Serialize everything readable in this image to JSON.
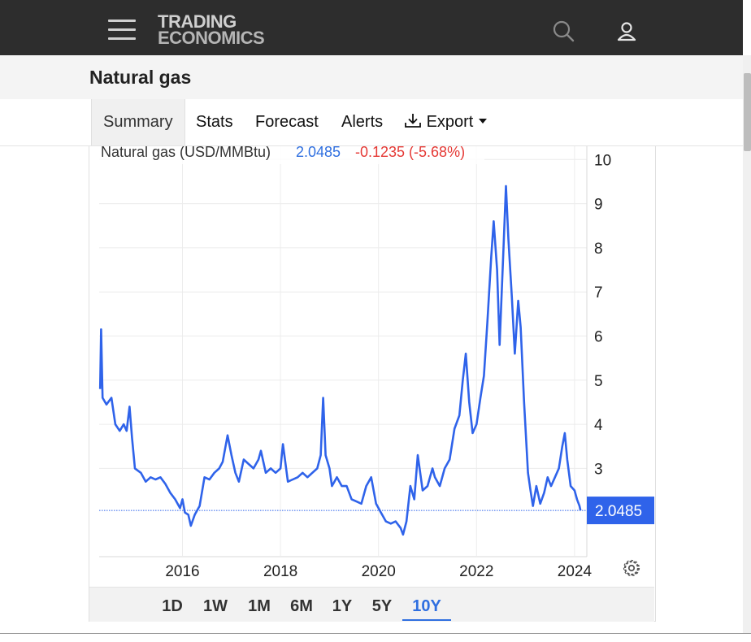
{
  "header": {
    "logo_line1": "TRADING",
    "logo_line2": "ECONOMICS"
  },
  "page": {
    "title": "Natural gas"
  },
  "tabs": [
    {
      "label": "Summary",
      "active": true
    },
    {
      "label": "Stats"
    },
    {
      "label": "Forecast"
    },
    {
      "label": "Alerts"
    },
    {
      "label": "Export"
    }
  ],
  "colors": {
    "line": "#2f63ea",
    "up": "#2f6fe0",
    "down": "#e53935",
    "header_bg": "#2d2d2d"
  },
  "chart_data": {
    "type": "line",
    "legend": {
      "name": "Natural gas (USD/MMBtu)",
      "value": "2.0485",
      "change": "-0.1235 (-5.68%)"
    },
    "last_value_label": "2.0485",
    "last_value": 2.0485,
    "ylim": [
      1.0,
      10.3
    ],
    "xlim": [
      2014.3,
      2024.25
    ],
    "y_ticks": [
      3,
      4,
      5,
      6,
      7,
      8,
      9,
      10
    ],
    "x_ticks": [
      2016,
      2018,
      2020,
      2022,
      2024
    ],
    "x_tick_labels": [
      "2016",
      "2018",
      "2020",
      "2022",
      "2024"
    ],
    "grid": true,
    "series": [
      {
        "values": [
          [
            2014.32,
            4.8
          ],
          [
            2014.34,
            6.15
          ],
          [
            2014.37,
            4.6
          ],
          [
            2014.45,
            4.45
          ],
          [
            2014.55,
            4.6
          ],
          [
            2014.63,
            4.0
          ],
          [
            2014.72,
            3.85
          ],
          [
            2014.8,
            4.0
          ],
          [
            2014.86,
            3.85
          ],
          [
            2014.92,
            4.4
          ],
          [
            2014.97,
            3.7
          ],
          [
            2015.03,
            3.0
          ],
          [
            2015.15,
            2.9
          ],
          [
            2015.25,
            2.7
          ],
          [
            2015.35,
            2.8
          ],
          [
            2015.45,
            2.75
          ],
          [
            2015.55,
            2.8
          ],
          [
            2015.65,
            2.65
          ],
          [
            2015.75,
            2.45
          ],
          [
            2015.85,
            2.3
          ],
          [
            2015.95,
            2.1
          ],
          [
            2016.0,
            2.3
          ],
          [
            2016.05,
            2.0
          ],
          [
            2016.12,
            1.95
          ],
          [
            2016.17,
            1.7
          ],
          [
            2016.25,
            1.95
          ],
          [
            2016.35,
            2.15
          ],
          [
            2016.45,
            2.8
          ],
          [
            2016.55,
            2.75
          ],
          [
            2016.65,
            2.9
          ],
          [
            2016.75,
            3.0
          ],
          [
            2016.82,
            3.15
          ],
          [
            2016.92,
            3.75
          ],
          [
            2017.0,
            3.3
          ],
          [
            2017.08,
            2.9
          ],
          [
            2017.15,
            2.7
          ],
          [
            2017.25,
            3.2
          ],
          [
            2017.35,
            3.1
          ],
          [
            2017.45,
            3.0
          ],
          [
            2017.55,
            3.2
          ],
          [
            2017.6,
            3.4
          ],
          [
            2017.7,
            2.9
          ],
          [
            2017.8,
            3.0
          ],
          [
            2017.9,
            2.9
          ],
          [
            2018.0,
            3.0
          ],
          [
            2018.05,
            3.55
          ],
          [
            2018.15,
            2.7
          ],
          [
            2018.25,
            2.75
          ],
          [
            2018.35,
            2.8
          ],
          [
            2018.45,
            2.9
          ],
          [
            2018.55,
            2.8
          ],
          [
            2018.65,
            2.9
          ],
          [
            2018.75,
            3.0
          ],
          [
            2018.82,
            3.3
          ],
          [
            2018.87,
            4.6
          ],
          [
            2018.92,
            3.3
          ],
          [
            2019.0,
            3.0
          ],
          [
            2019.05,
            2.6
          ],
          [
            2019.15,
            2.8
          ],
          [
            2019.25,
            2.6
          ],
          [
            2019.35,
            2.6
          ],
          [
            2019.45,
            2.3
          ],
          [
            2019.55,
            2.25
          ],
          [
            2019.65,
            2.2
          ],
          [
            2019.75,
            2.6
          ],
          [
            2019.85,
            2.8
          ],
          [
            2019.95,
            2.2
          ],
          [
            2020.05,
            2.0
          ],
          [
            2020.15,
            1.8
          ],
          [
            2020.25,
            1.75
          ],
          [
            2020.35,
            1.8
          ],
          [
            2020.45,
            1.65
          ],
          [
            2020.5,
            1.5
          ],
          [
            2020.57,
            1.8
          ],
          [
            2020.65,
            2.6
          ],
          [
            2020.73,
            2.3
          ],
          [
            2020.8,
            3.3
          ],
          [
            2020.85,
            2.9
          ],
          [
            2020.9,
            2.5
          ],
          [
            2021.0,
            2.6
          ],
          [
            2021.1,
            3.0
          ],
          [
            2021.15,
            2.8
          ],
          [
            2021.25,
            2.6
          ],
          [
            2021.35,
            3.0
          ],
          [
            2021.45,
            3.2
          ],
          [
            2021.55,
            3.9
          ],
          [
            2021.65,
            4.2
          ],
          [
            2021.72,
            5.0
          ],
          [
            2021.78,
            5.6
          ],
          [
            2021.85,
            4.5
          ],
          [
            2021.92,
            3.8
          ],
          [
            2022.0,
            4.0
          ],
          [
            2022.08,
            4.6
          ],
          [
            2022.15,
            5.1
          ],
          [
            2022.22,
            6.3
          ],
          [
            2022.3,
            7.8
          ],
          [
            2022.35,
            8.6
          ],
          [
            2022.42,
            7.5
          ],
          [
            2022.47,
            5.8
          ],
          [
            2022.55,
            8.0
          ],
          [
            2022.6,
            9.4
          ],
          [
            2022.65,
            8.2
          ],
          [
            2022.72,
            6.9
          ],
          [
            2022.78,
            5.6
          ],
          [
            2022.85,
            6.8
          ],
          [
            2022.9,
            6.2
          ],
          [
            2022.97,
            4.5
          ],
          [
            2023.05,
            2.9
          ],
          [
            2023.1,
            2.5
          ],
          [
            2023.15,
            2.15
          ],
          [
            2023.22,
            2.6
          ],
          [
            2023.3,
            2.2
          ],
          [
            2023.38,
            2.45
          ],
          [
            2023.45,
            2.8
          ],
          [
            2023.52,
            2.6
          ],
          [
            2023.6,
            2.8
          ],
          [
            2023.68,
            3.0
          ],
          [
            2023.75,
            3.5
          ],
          [
            2023.8,
            3.8
          ],
          [
            2023.85,
            3.2
          ],
          [
            2023.92,
            2.6
          ],
          [
            2024.0,
            2.5
          ],
          [
            2024.05,
            2.3
          ],
          [
            2024.1,
            2.15
          ],
          [
            2024.12,
            2.0485
          ]
        ]
      }
    ]
  },
  "range_buttons": [
    {
      "label": "1D"
    },
    {
      "label": "1W"
    },
    {
      "label": "1M"
    },
    {
      "label": "6M"
    },
    {
      "label": "1Y"
    },
    {
      "label": "5Y"
    },
    {
      "label": "10Y",
      "active": true
    }
  ],
  "icons": {
    "search": "search-icon",
    "user": "user-icon",
    "settings": "gear-icon",
    "menu": "hamburger-menu-icon",
    "export": "download-icon",
    "caret": "caret-down-icon"
  }
}
